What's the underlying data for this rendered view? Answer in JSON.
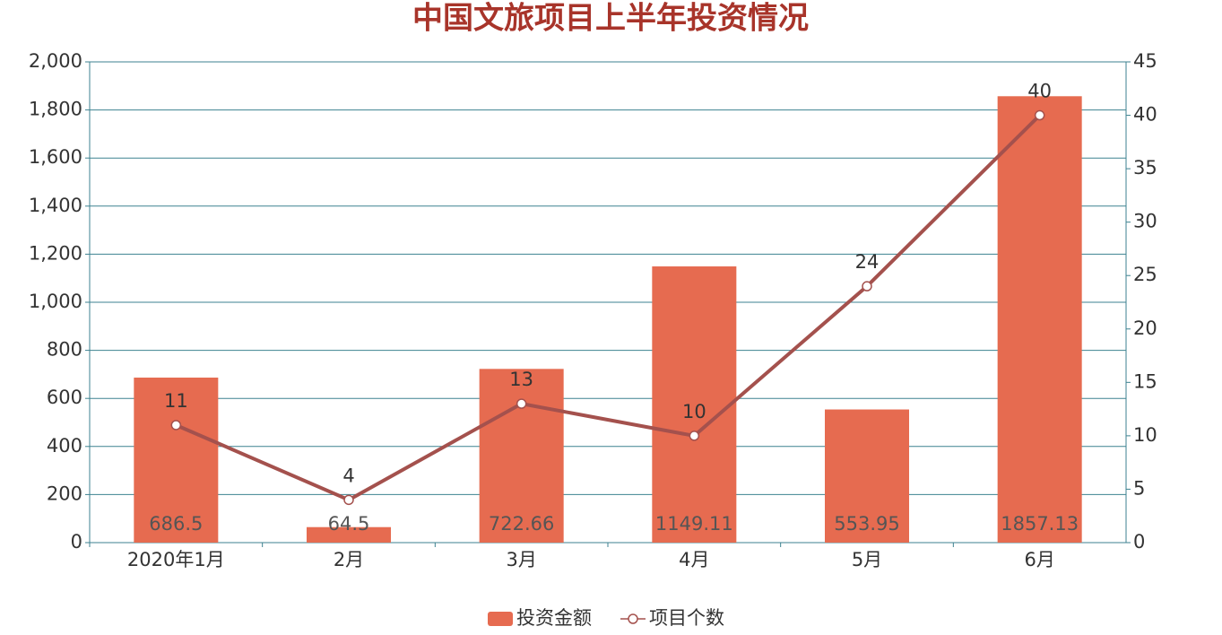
{
  "chart_data": {
    "type": "bar",
    "title": "中国文旅项目上半年投资情况",
    "categories": [
      "2020年1月",
      "2月",
      "3月",
      "4月",
      "5月",
      "6月"
    ],
    "series": [
      {
        "name": "投资金额",
        "type": "bar",
        "color": "#e66b50",
        "values": [
          686.5,
          64.5,
          722.66,
          1149.11,
          553.95,
          1857.13
        ]
      },
      {
        "name": "项目个数",
        "type": "line",
        "axis": "y2",
        "color": "#a4514d",
        "values": [
          11,
          4,
          13,
          10,
          24,
          40
        ]
      }
    ],
    "ylim": [
      0,
      2000
    ],
    "yticks": [
      0,
      200,
      400,
      600,
      800,
      {
        "value": 1000,
        "label": "1,000"
      },
      {
        "value": 1200,
        "label": "1,200"
      },
      {
        "value": 1400,
        "label": "1,400"
      },
      {
        "value": 1600,
        "label": "1,600"
      },
      {
        "value": 1800,
        "label": "1,800"
      },
      {
        "value": 2000,
        "label": "2,000"
      }
    ],
    "y2lim": [
      0,
      45
    ],
    "y2ticks": [
      0,
      5,
      10,
      15,
      20,
      25,
      30,
      35,
      40,
      45
    ],
    "grid": true,
    "legend": "bottom"
  }
}
